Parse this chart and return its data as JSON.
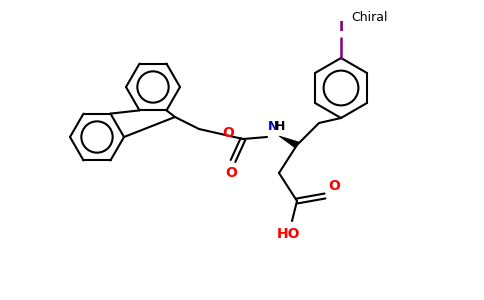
{
  "background": "#ffffff",
  "bond_color": "#000000",
  "O_color": "#ff0000",
  "N_color": "#0000cd",
  "I_color": "#800080",
  "chiral_label": "Chiral",
  "I_label": "I",
  "NH_label": "H",
  "N_label": "N",
  "O_label1": "O",
  "O_label2": "O",
  "OH_label": "HO",
  "figsize": [
    4.84,
    3.0
  ],
  "dpi": 100
}
